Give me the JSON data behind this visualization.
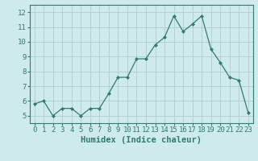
{
  "x": [
    0,
    1,
    2,
    3,
    4,
    5,
    6,
    7,
    8,
    9,
    10,
    11,
    12,
    13,
    14,
    15,
    16,
    17,
    18,
    19,
    20,
    21,
    22,
    23
  ],
  "y": [
    5.8,
    6.0,
    5.0,
    5.5,
    5.5,
    5.0,
    5.5,
    5.5,
    6.5,
    7.6,
    7.6,
    8.85,
    8.85,
    9.8,
    10.3,
    11.75,
    10.7,
    11.2,
    11.75,
    9.5,
    8.6,
    7.6,
    7.4,
    5.2
  ],
  "line_color": "#2e7d6e",
  "marker": "D",
  "marker_size": 2.0,
  "bg_color": "#ceeaea",
  "grid_color": "#b0cccc",
  "xlabel": "Humidex (Indice chaleur)",
  "xlabel_fontsize": 7.5,
  "tick_fontsize": 6.5,
  "xlim": [
    -0.5,
    23.5
  ],
  "ylim": [
    4.5,
    12.5
  ],
  "yticks": [
    5,
    6,
    7,
    8,
    9,
    10,
    11,
    12
  ],
  "xticks": [
    0,
    1,
    2,
    3,
    4,
    5,
    6,
    7,
    8,
    9,
    10,
    11,
    12,
    13,
    14,
    15,
    16,
    17,
    18,
    19,
    20,
    21,
    22,
    23
  ],
  "spine_color": "#2e7d6e",
  "fig_width": 3.2,
  "fig_height": 2.0,
  "dpi": 100
}
